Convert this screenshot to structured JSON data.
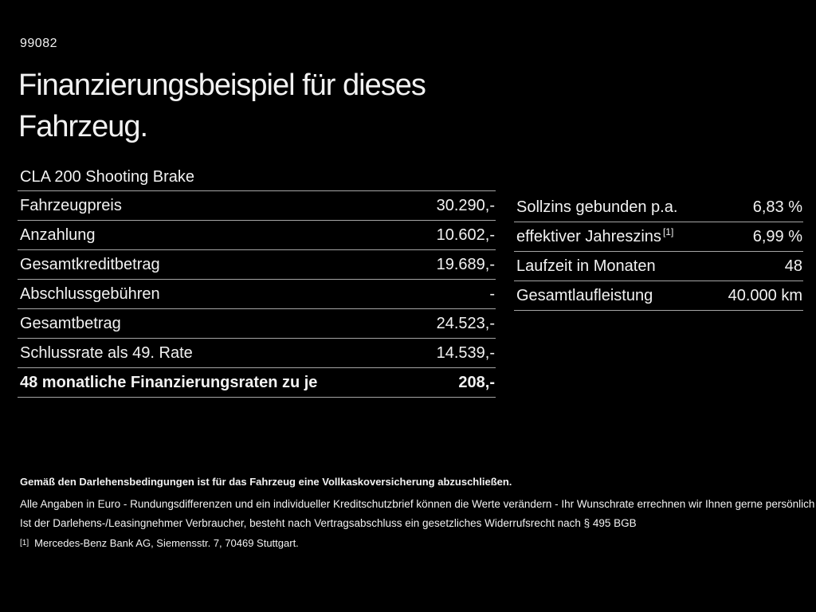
{
  "page": {
    "background": "#000000",
    "text_color": "#f2f2f2",
    "divider_color": "#a6a6a6"
  },
  "header": {
    "code": "99082",
    "title_line1": "Finanzierungsbeispiel für dieses",
    "title_line2": "Fahrzeug.",
    "vehicle_model": "CLA 200 Shooting Brake"
  },
  "financing_table": {
    "rows": [
      {
        "label": "Fahrzeugpreis",
        "value": "30.290,-"
      },
      {
        "label": "Anzahlung",
        "value": "10.602,-"
      },
      {
        "label": "Gesamtkreditbetrag",
        "value": "19.689,-"
      },
      {
        "label": "Abschlussgebühren",
        "value": "-"
      },
      {
        "label": "Gesamtbetrag",
        "value": "24.523,-"
      },
      {
        "label": "Schlussrate als 49. Rate",
        "value": "14.539,-"
      },
      {
        "label": "48 monatliche Finanzierungsraten zu je",
        "value": "208,-"
      }
    ]
  },
  "conditions_table": {
    "rows": [
      {
        "label": "Sollzins gebunden p.a.",
        "superscript": "",
        "value": "6,83 %"
      },
      {
        "label": "effektiver Jahreszins",
        "superscript": "[1]",
        "value": "6,99 %"
      },
      {
        "label": "Laufzeit in Monaten",
        "superscript": "",
        "value": "48"
      },
      {
        "label": "Gesamtlaufleistung",
        "superscript": "",
        "value": "40.000 km"
      }
    ]
  },
  "footnotes": {
    "insurance_note": "Gemäß den Darlehensbedingungen ist für das Fahrzeug eine Vollkaskoversicherung abzuschließen.",
    "disclaimer1": "Alle Angaben in Euro - Rundungsdifferenzen und ein individueller Kreditschutzbrief können die Werte verändern - Ihr Wunschrate errechnen wir Ihnen gerne persönlich",
    "disclaimer2": "Ist der Darlehens-/Leasingnehmer Verbraucher, besteht nach Vertragsabschluss ein gesetzliches Widerrufsrecht nach § 495 BGB",
    "reference_marker": "[1]",
    "reference_text": "Mercedes-Benz Bank AG, Siemensstr. 7, 70469 Stuttgart."
  }
}
